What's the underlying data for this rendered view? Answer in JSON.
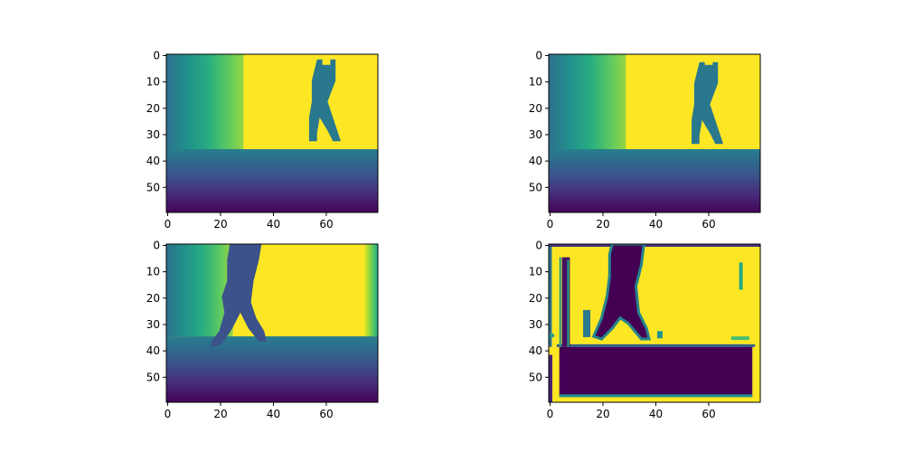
{
  "chart_data": [
    {
      "type": "heatmap",
      "name": "top-left",
      "x_ticks": [
        "0",
        "20",
        "40",
        "60"
      ],
      "y_ticks": [
        "0",
        "10",
        "20",
        "30",
        "40",
        "50"
      ],
      "xlim": [
        -0.5,
        79.5
      ],
      "ylim": [
        59.5,
        -0.5
      ],
      "colormap": "viridis",
      "scene": {
        "wall_gradient_end_col": 28,
        "floor_row": 36,
        "figure": {
          "color": "#2a788e",
          "polygon": [
            [
              57,
              2
            ],
            [
              59,
              2
            ],
            [
              59,
              4
            ],
            [
              62,
              4
            ],
            [
              62,
              2
            ],
            [
              64,
              2
            ],
            [
              64,
              10
            ],
            [
              61,
              18
            ],
            [
              63,
              24
            ],
            [
              65,
              30
            ],
            [
              66,
              33
            ],
            [
              63,
              33
            ],
            [
              61,
              29
            ],
            [
              58,
              24
            ],
            [
              57,
              30
            ],
            [
              57,
              33
            ],
            [
              54,
              33
            ],
            [
              54,
              24
            ],
            [
              55,
              18
            ],
            [
              55,
              10
            ],
            [
              56,
              6
            ]
          ]
        },
        "right_wall_gradient": false,
        "floor_is_dark_region": false
      }
    },
    {
      "type": "heatmap",
      "name": "top-right",
      "x_ticks": [
        "0",
        "20",
        "40",
        "60"
      ],
      "y_ticks": [
        "0",
        "10",
        "20",
        "30",
        "40",
        "50"
      ],
      "xlim": [
        -0.5,
        79.5
      ],
      "ylim": [
        59.5,
        -0.5
      ],
      "colormap": "viridis",
      "scene": {
        "wall_gradient_end_col": 28,
        "floor_row": 36,
        "figure": {
          "color": "#2a788e",
          "polygon": [
            [
              57,
              3
            ],
            [
              59,
              3
            ],
            [
              59,
              4
            ],
            [
              62,
              4
            ],
            [
              62,
              3
            ],
            [
              64,
              3
            ],
            [
              64,
              11
            ],
            [
              61,
              19
            ],
            [
              63,
              25
            ],
            [
              65,
              31
            ],
            [
              66,
              34
            ],
            [
              63,
              34
            ],
            [
              61,
              30
            ],
            [
              58,
              25
            ],
            [
              57,
              31
            ],
            [
              57,
              34
            ],
            [
              54,
              34
            ],
            [
              54,
              25
            ],
            [
              55,
              19
            ],
            [
              55,
              11
            ],
            [
              56,
              7
            ]
          ]
        },
        "right_wall_gradient": false,
        "floor_is_dark_region": false
      }
    },
    {
      "type": "heatmap",
      "name": "bottom-left",
      "x_ticks": [
        "0",
        "20",
        "40",
        "60"
      ],
      "y_ticks": [
        "0",
        "10",
        "20",
        "30",
        "40",
        "50"
      ],
      "xlim": [
        -0.5,
        79.5
      ],
      "ylim": [
        59.5,
        -0.5
      ],
      "colormap": "viridis",
      "scene": {
        "wall_gradient_end_col": 24,
        "floor_row": 35,
        "figure": {
          "color": "#3b528b",
          "polygon": [
            [
              24,
              0
            ],
            [
              36,
              0
            ],
            [
              35,
              6
            ],
            [
              33,
              14
            ],
            [
              32,
              22
            ],
            [
              34,
              28
            ],
            [
              37,
              33
            ],
            [
              38,
              37
            ],
            [
              35,
              37
            ],
            [
              31,
              32
            ],
            [
              28,
              26
            ],
            [
              25,
              32
            ],
            [
              21,
              38
            ],
            [
              17,
              39
            ],
            [
              17,
              37
            ],
            [
              20,
              33
            ],
            [
              22,
              26
            ],
            [
              21,
              20
            ],
            [
              23,
              14
            ],
            [
              23,
              6
            ]
          ]
        },
        "right_wall_gradient": true,
        "floor_is_dark_region": false
      }
    },
    {
      "type": "heatmap",
      "name": "bottom-right",
      "x_ticks": [
        "0",
        "20",
        "40",
        "60"
      ],
      "y_ticks": [
        "0",
        "10",
        "20",
        "30",
        "40",
        "50"
      ],
      "xlim": [
        -0.5,
        79.5
      ],
      "ylim": [
        59.5,
        -0.5
      ],
      "colormap": "viridis",
      "scene": {
        "wall_gradient_end_col": 0,
        "floor_row": 39,
        "figure": {
          "color": "#440154",
          "polygon": [
            [
              24,
              0
            ],
            [
              36,
              0
            ],
            [
              35,
              8
            ],
            [
              33,
              16
            ],
            [
              34,
              26
            ],
            [
              37,
              32
            ],
            [
              38,
              36
            ],
            [
              35,
              36
            ],
            [
              30,
              30
            ],
            [
              27,
              28
            ],
            [
              24,
              32
            ],
            [
              20,
              36
            ],
            [
              17,
              35
            ],
            [
              20,
              28
            ],
            [
              22,
              20
            ],
            [
              23,
              12
            ],
            [
              23,
              4
            ]
          ]
        },
        "right_wall_gradient": false,
        "floor_is_dark_region": true
      }
    }
  ]
}
